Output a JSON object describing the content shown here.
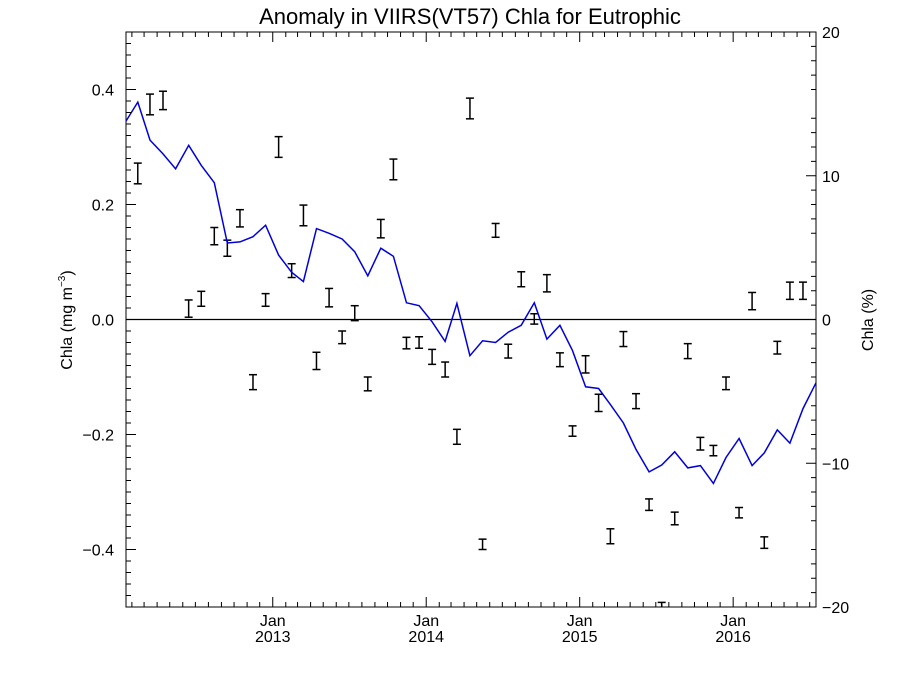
{
  "chart_data": {
    "type": "line",
    "title": "Anomaly in VIIRS(VT57) Chla for Eutrophic",
    "ylabel_left": {
      "base": "Chla (mg m",
      "sup": "−3",
      "close": ")"
    },
    "ylabel_right": "Chla (%)",
    "ylim_left": [
      -0.5,
      0.5
    ],
    "ylim_right": [
      -20,
      20
    ],
    "xlim": [
      "2012-01-18",
      "2016-07-16"
    ],
    "left_ticks": [
      {
        "value": 0.4,
        "label": "0.4"
      },
      {
        "value": 0.2,
        "label": "0.2"
      },
      {
        "value": 0.0,
        "label": "0.0"
      },
      {
        "value": -0.2,
        "label": "−0.2"
      },
      {
        "value": -0.4,
        "label": "−0.4"
      }
    ],
    "right_ticks": [
      {
        "value": 20,
        "label": "20"
      },
      {
        "value": 10,
        "label": "10"
      },
      {
        "value": 0,
        "label": "0"
      },
      {
        "value": -10,
        "label": "−10"
      },
      {
        "value": -20,
        "label": "−20"
      }
    ],
    "x_ticks": [
      {
        "date": "2013-01-01",
        "month": "Jan",
        "year": "2013"
      },
      {
        "date": "2014-01-01",
        "month": "Jan",
        "year": "2014"
      },
      {
        "date": "2015-01-01",
        "month": "Jan",
        "year": "2015"
      },
      {
        "date": "2016-01-01",
        "month": "Jan",
        "year": "2016"
      }
    ],
    "zero_line": 0,
    "colors": {
      "line": "#0000dd",
      "errorbar": "#000000"
    },
    "series": [
      {
        "type": "line",
        "axis": "left",
        "x": [
          "2012-01-18",
          "2012-02-15",
          "2012-03-15",
          "2012-04-15",
          "2012-05-15",
          "2012-06-15",
          "2012-07-15",
          "2012-08-15",
          "2012-09-15",
          "2012-10-15",
          "2012-11-15",
          "2012-12-15",
          "2013-01-15",
          "2013-02-15",
          "2013-03-15",
          "2013-04-15",
          "2013-05-15",
          "2013-06-15",
          "2013-07-15",
          "2013-08-15",
          "2013-09-15",
          "2013-10-15",
          "2013-11-15",
          "2013-12-15",
          "2014-01-15",
          "2014-02-15",
          "2014-03-15",
          "2014-04-15",
          "2014-05-15",
          "2014-06-15",
          "2014-07-15",
          "2014-08-15",
          "2014-09-15",
          "2014-10-15",
          "2014-11-15",
          "2014-12-15",
          "2015-01-15",
          "2015-02-15",
          "2015-03-15",
          "2015-04-15",
          "2015-05-15",
          "2015-06-15",
          "2015-07-15",
          "2015-08-15",
          "2015-09-15",
          "2015-10-15",
          "2015-11-15",
          "2015-12-15",
          "2016-01-15",
          "2016-02-15",
          "2016-03-15",
          "2016-04-15",
          "2016-05-15",
          "2016-06-15",
          "2016-07-16"
        ],
        "y": [
          0.345,
          0.378,
          0.312,
          0.288,
          0.262,
          0.303,
          0.268,
          0.238,
          0.133,
          0.135,
          0.144,
          0.164,
          0.112,
          0.082,
          0.066,
          0.158,
          0.15,
          0.14,
          0.118,
          0.076,
          0.124,
          0.11,
          0.029,
          0.024,
          -0.004,
          -0.038,
          0.028,
          -0.063,
          -0.037,
          -0.04,
          -0.022,
          -0.01,
          0.029,
          -0.034,
          -0.01,
          -0.054,
          -0.117,
          -0.12,
          -0.148,
          -0.18,
          -0.226,
          -0.265,
          -0.253,
          -0.23,
          -0.258,
          -0.254,
          -0.285,
          -0.24,
          -0.207,
          -0.254,
          -0.232,
          -0.192,
          -0.215,
          -0.155,
          -0.11
        ]
      },
      {
        "type": "errorbar",
        "axis": "left",
        "x": [
          "2012-02-15",
          "2012-03-15",
          "2012-04-15",
          "2012-06-15",
          "2012-07-15",
          "2012-08-15",
          "2012-09-15",
          "2012-10-15",
          "2012-11-15",
          "2012-12-15",
          "2013-01-15",
          "2013-02-15",
          "2013-03-15",
          "2013-04-15",
          "2013-05-15",
          "2013-06-15",
          "2013-07-15",
          "2013-08-15",
          "2013-09-15",
          "2013-10-15",
          "2013-11-15",
          "2013-12-15",
          "2014-01-15",
          "2014-02-15",
          "2014-03-15",
          "2014-04-15",
          "2014-05-15",
          "2014-06-15",
          "2014-07-15",
          "2014-08-15",
          "2014-09-15",
          "2014-10-15",
          "2014-11-15",
          "2014-12-15",
          "2015-01-15",
          "2015-02-15",
          "2015-03-15",
          "2015-04-15",
          "2015-05-15",
          "2015-06-15",
          "2015-07-15",
          "2015-08-15",
          "2015-09-15",
          "2015-10-15",
          "2015-11-15",
          "2015-12-15",
          "2016-01-15",
          "2016-02-15",
          "2016-03-15",
          "2016-04-15",
          "2016-05-15",
          "2016-06-15"
        ],
        "y": [
          0.254,
          0.374,
          0.381,
          0.019,
          0.036,
          0.145,
          0.124,
          0.176,
          -0.109,
          0.034,
          0.3,
          0.085,
          0.181,
          -0.072,
          0.038,
          -0.031,
          0.011,
          -0.112,
          0.158,
          0.261,
          -0.041,
          -0.04,
          -0.065,
          -0.087,
          -0.204,
          0.367,
          -0.391,
          0.155,
          -0.055,
          0.07,
          0.001,
          0.063,
          -0.07,
          -0.194,
          -0.078,
          -0.145,
          -0.377,
          -0.034,
          -0.142,
          -0.322,
          -0.5,
          -0.346,
          -0.055,
          -0.216,
          -0.228,
          -0.111,
          -0.336,
          0.032,
          -0.388,
          -0.049,
          0.05,
          0.05
        ],
        "err": [
          0.018,
          0.018,
          0.016,
          0.015,
          0.013,
          0.015,
          0.014,
          0.015,
          0.013,
          0.011,
          0.018,
          0.012,
          0.018,
          0.015,
          0.016,
          0.011,
          0.013,
          0.012,
          0.016,
          0.018,
          0.01,
          0.01,
          0.013,
          0.013,
          0.013,
          0.018,
          0.009,
          0.012,
          0.012,
          0.013,
          0.009,
          0.015,
          0.012,
          0.009,
          0.015,
          0.015,
          0.013,
          0.013,
          0.013,
          0.01,
          0.008,
          0.011,
          0.013,
          0.011,
          0.009,
          0.011,
          0.009,
          0.015,
          0.01,
          0.011,
          0.015,
          0.015
        ]
      }
    ]
  }
}
